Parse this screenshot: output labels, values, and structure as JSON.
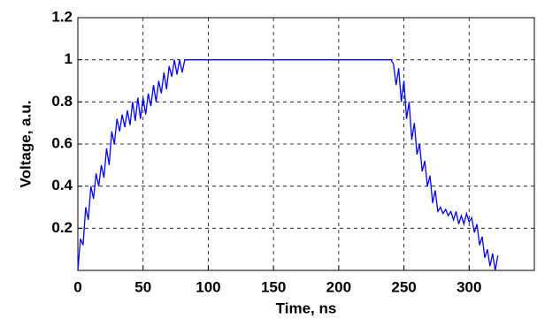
{
  "chart_data": {
    "type": "line",
    "x_label": "Time, ns",
    "y_label": "Voltage, a.u.",
    "x": [
      0,
      2,
      4,
      6,
      8,
      10,
      12,
      14,
      16,
      18,
      20,
      22,
      24,
      26,
      28,
      30,
      32,
      34,
      36,
      38,
      40,
      42,
      44,
      46,
      48,
      50,
      52,
      54,
      56,
      58,
      60,
      62,
      64,
      66,
      68,
      70,
      72,
      74,
      76,
      78,
      80,
      82,
      84,
      240,
      242,
      244,
      246,
      248,
      250,
      252,
      254,
      256,
      258,
      260,
      262,
      264,
      266,
      268,
      270,
      272,
      274,
      276,
      278,
      280,
      282,
      284,
      286,
      288,
      290,
      292,
      294,
      296,
      298,
      300,
      302,
      304,
      306,
      308,
      310,
      312,
      314,
      316,
      318,
      320,
      322
    ],
    "values": [
      0.0,
      0.15,
      0.12,
      0.3,
      0.24,
      0.4,
      0.34,
      0.46,
      0.4,
      0.5,
      0.44,
      0.58,
      0.5,
      0.66,
      0.6,
      0.72,
      0.66,
      0.74,
      0.68,
      0.76,
      0.69,
      0.8,
      0.71,
      0.82,
      0.72,
      0.82,
      0.74,
      0.84,
      0.78,
      0.88,
      0.8,
      0.9,
      0.84,
      0.94,
      0.86,
      0.97,
      0.92,
      1.0,
      0.93,
      1.0,
      0.94,
      1.0,
      1.0,
      1.0,
      0.98,
      0.88,
      0.96,
      0.8,
      0.9,
      0.72,
      0.8,
      0.62,
      0.7,
      0.55,
      0.6,
      0.47,
      0.52,
      0.4,
      0.45,
      0.32,
      0.38,
      0.28,
      0.3,
      0.27,
      0.29,
      0.26,
      0.28,
      0.24,
      0.28,
      0.22,
      0.26,
      0.22,
      0.27,
      0.23,
      0.25,
      0.18,
      0.22,
      0.12,
      0.16,
      0.06,
      0.1,
      0.02,
      0.08,
      0.0,
      0.07
    ],
    "color": "#0000ff",
    "xlim": [
      0,
      350
    ],
    "xticks": [
      0,
      50,
      100,
      150,
      200,
      250,
      300
    ],
    "ylim": [
      0,
      1.2
    ],
    "yticks": [
      0.2,
      0.4,
      0.6,
      0.8,
      1,
      1.2
    ],
    "grid": true
  }
}
